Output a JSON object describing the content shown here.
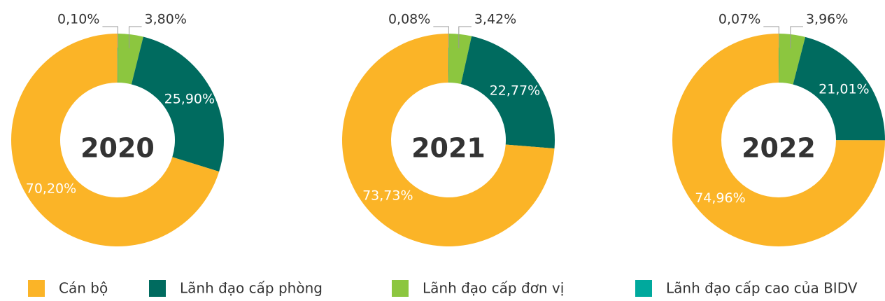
{
  "chart_data": [
    {
      "type": "pie",
      "title": "2020",
      "categories": [
        "Cán bộ",
        "Lãnh đạo cấp phòng",
        "Lãnh đạo cấp đơn vị",
        "Lãnh đạo cấp cao của BIDV"
      ],
      "values": [
        70.2,
        25.9,
        3.8,
        0.1
      ],
      "value_labels": [
        "70,20%",
        "25,90%",
        "3,80%",
        "0,10%"
      ],
      "colors": [
        "#FBB427",
        "#006B5F",
        "#8CC63F",
        "#00A99D"
      ]
    },
    {
      "type": "pie",
      "title": "2021",
      "categories": [
        "Cán bộ",
        "Lãnh đạo cấp phòng",
        "Lãnh đạo cấp đơn vị",
        "Lãnh đạo cấp cao của BIDV"
      ],
      "values": [
        73.73,
        22.77,
        3.42,
        0.08
      ],
      "value_labels": [
        "73,73%",
        "22,77%",
        "3,42%",
        "0,08%"
      ],
      "colors": [
        "#FBB427",
        "#006B5F",
        "#8CC63F",
        "#00A99D"
      ]
    },
    {
      "type": "pie",
      "title": "2022",
      "categories": [
        "Cán bộ",
        "Lãnh đạo cấp phòng",
        "Lãnh đạo cấp đơn vị",
        "Lãnh đạo cấp cao của BIDV"
      ],
      "values": [
        74.96,
        21.01,
        3.96,
        0.07
      ],
      "value_labels": [
        "74,96%",
        "21,01%",
        "3,96%",
        "0,07%"
      ],
      "colors": [
        "#FBB427",
        "#006B5F",
        "#8CC63F",
        "#00A99D"
      ]
    }
  ]
}
